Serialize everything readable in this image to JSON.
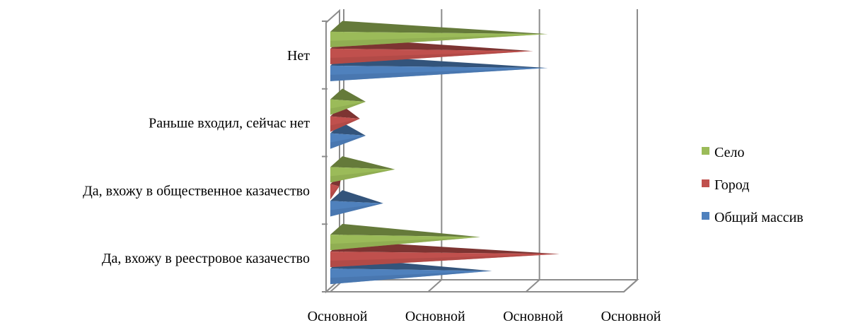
{
  "chart_data": {
    "type": "bar",
    "orientation": "horizontal",
    "style": "3d-cone",
    "categories": [
      "Да, вхожу в реестровое казачество",
      "Да, вхожу в общественное казачество",
      "Раньше входил, сейчас нет",
      "Нет"
    ],
    "series": [
      {
        "name": "Общий массив",
        "color": "#4F81BD",
        "values": [
          0.53,
          0.16,
          0.1,
          0.72
        ]
      },
      {
        "name": "Город",
        "color": "#C0504D",
        "values": [
          0.76,
          0.01,
          0.08,
          0.67
        ]
      },
      {
        "name": "Село",
        "color": "#9BBB59",
        "values": [
          0.49,
          0.2,
          0.1,
          0.72
        ]
      }
    ],
    "xlim": [
      0,
      1
    ],
    "x_ticks": [
      "Основной",
      "Основной",
      "Основной",
      "Основной"
    ],
    "grid": true,
    "legend_position": "right"
  }
}
